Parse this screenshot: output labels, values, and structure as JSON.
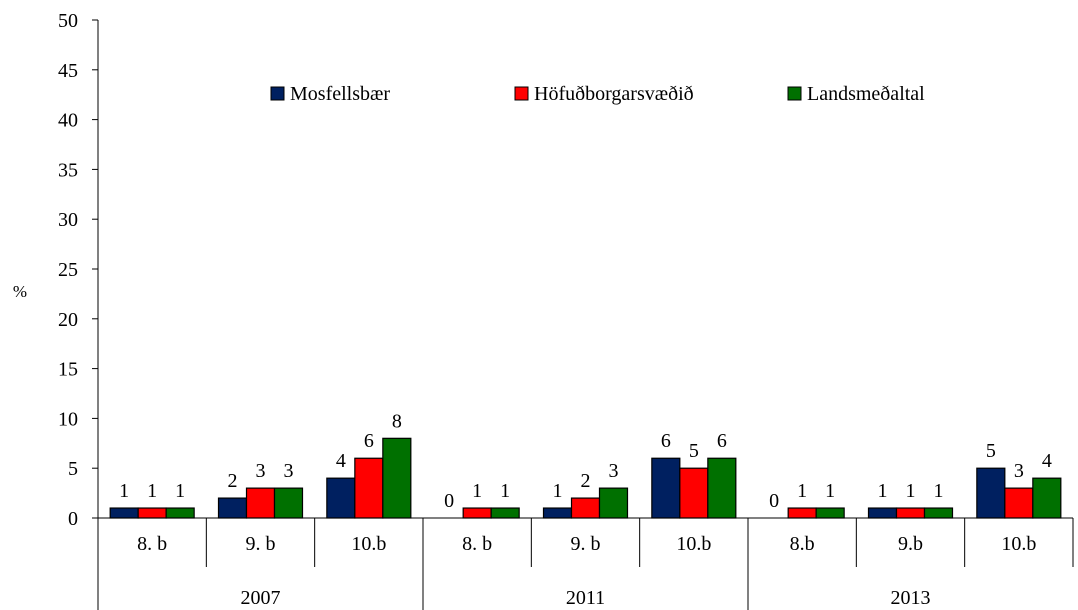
{
  "chart_data": {
    "type": "bar",
    "title": "",
    "xlabel": "",
    "ylabel": "%",
    "ylim": [
      0,
      50
    ],
    "yticks": [
      0,
      5,
      10,
      15,
      20,
      25,
      30,
      35,
      40,
      45,
      50
    ],
    "grid": false,
    "legend_position": "top",
    "groups": [
      {
        "label": "2007",
        "categories": [
          "8. b",
          "9. b",
          "10.b"
        ]
      },
      {
        "label": "2011",
        "categories": [
          "8. b",
          "9. b",
          "10.b"
        ]
      },
      {
        "label": "2013",
        "categories": [
          "8.b",
          "9.b",
          "10.b"
        ]
      }
    ],
    "series": [
      {
        "name": "Mosfellsbær",
        "color": "#002060",
        "values": [
          1,
          2,
          4,
          0,
          1,
          6,
          0,
          1,
          5
        ]
      },
      {
        "name": "Höfuðborgarsvæðið",
        "color": "#ff0000",
        "values": [
          1,
          3,
          6,
          1,
          2,
          5,
          1,
          1,
          3
        ]
      },
      {
        "name": "Landsmeðaltal",
        "color": "#007000",
        "values": [
          1,
          3,
          8,
          1,
          3,
          6,
          1,
          1,
          4
        ]
      }
    ]
  }
}
